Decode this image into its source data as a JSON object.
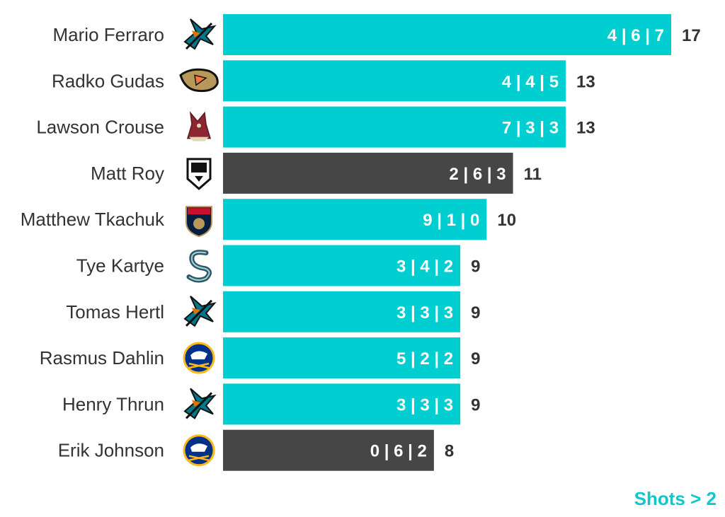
{
  "colors": {
    "highlight": "#00CED1",
    "default": "#464646",
    "label_text": "#333333",
    "note": "#12C6CB"
  },
  "footer": {
    "note": "Shots > 2"
  },
  "chart_data": {
    "type": "bar",
    "orientation": "horizontal",
    "xlim": [
      0,
      17
    ],
    "grid": false,
    "categories": [
      "Mario Ferraro",
      "Radko Gudas",
      "Lawson Crouse",
      "Matt Roy",
      "Matthew Tkachuk",
      "Tye Kartye",
      "Tomas Hertl",
      "Rasmus Dahlin",
      "Henry Thrun",
      "Erik Johnson"
    ],
    "values": [
      17,
      13,
      13,
      11,
      10,
      9,
      9,
      9,
      9,
      8
    ],
    "breakdown": [
      [
        4,
        6,
        7
      ],
      [
        4,
        4,
        5
      ],
      [
        7,
        3,
        3
      ],
      [
        2,
        6,
        3
      ],
      [
        9,
        1,
        0
      ],
      [
        3,
        4,
        2
      ],
      [
        3,
        3,
        3
      ],
      [
        5,
        2,
        2
      ],
      [
        3,
        3,
        3
      ],
      [
        0,
        6,
        2
      ]
    ],
    "breakdown_labels": [
      "4 | 6 | 7",
      "4 | 4 | 5",
      "7 | 3 | 3",
      "2 | 6 | 3",
      "9 | 1 | 0",
      "3 | 4 | 2",
      "3 | 3 | 3",
      "5 | 2 | 2",
      "3 | 3 | 3",
      "0 | 6 | 2"
    ],
    "highlight": [
      true,
      true,
      true,
      false,
      true,
      true,
      true,
      true,
      true,
      false
    ],
    "team_logos": [
      "sharks-logo",
      "ducks-logo",
      "coyotes-logo",
      "kings-logo",
      "panthers-logo",
      "kraken-logo",
      "sharks-logo",
      "sabres-logo",
      "sharks-logo",
      "sabres-logo"
    ]
  }
}
